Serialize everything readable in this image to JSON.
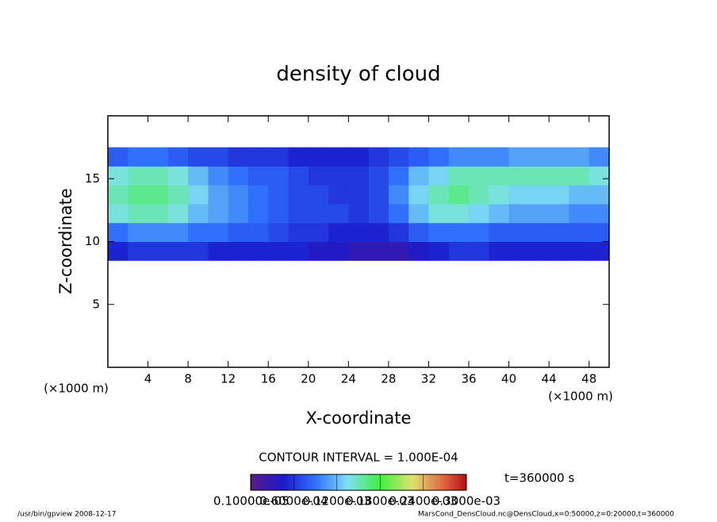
{
  "chart_data": {
    "type": "heatmap",
    "title": "density of cloud",
    "x_label": "X-coordinate",
    "y_label": "Z-coordinate",
    "x_unit": "(×1000 m)",
    "y_unit": "(×1000 m)",
    "xlim": [
      0,
      50
    ],
    "ylim": [
      0,
      20
    ],
    "xticks": [
      4,
      8,
      12,
      16,
      20,
      24,
      28,
      32,
      36,
      40,
      44,
      48
    ],
    "yticks": [
      5,
      10,
      15
    ],
    "x": [
      1,
      3,
      5,
      7,
      9,
      11,
      13,
      15,
      17,
      19,
      21,
      23,
      25,
      27,
      29,
      31,
      33,
      35,
      37,
      39,
      41,
      43,
      45,
      47,
      49
    ],
    "y": [
      9.25,
      10.75,
      12.25,
      13.75,
      15.25,
      16.75
    ],
    "cell_width": 2,
    "cell_height": 1.5,
    "values": [
      [
        5e-05,
        6e-05,
        6e-05,
        6e-05,
        6e-05,
        5e-05,
        5e-05,
        5e-05,
        5e-05,
        5e-05,
        4e-05,
        4e-05,
        3e-05,
        3e-05,
        3e-05,
        4e-05,
        5e-05,
        6e-05,
        6e-05,
        5e-05,
        5e-05,
        5e-05,
        5e-05,
        5e-05,
        5e-05
      ],
      [
        9e-05,
        0.0001,
        0.0001,
        0.0001,
        9e-05,
        9e-05,
        8e-05,
        8e-05,
        7e-05,
        6e-05,
        6e-05,
        5e-05,
        5e-05,
        5e-05,
        6e-05,
        8e-05,
        9e-05,
        9e-05,
        9e-05,
        8e-05,
        8e-05,
        8e-05,
        8e-05,
        8e-05,
        8e-05
      ],
      [
        0.00014,
        0.00015,
        0.00015,
        0.00014,
        0.00012,
        0.00011,
        0.0001,
        9e-05,
        8e-05,
        7e-05,
        7e-05,
        7e-05,
        6e-05,
        7e-05,
        9e-05,
        0.00012,
        0.00014,
        0.00014,
        0.00013,
        0.00012,
        0.00011,
        0.00011,
        0.00011,
        0.0001,
        0.0001
      ],
      [
        0.00015,
        0.00016,
        0.00016,
        0.00015,
        0.00013,
        0.00011,
        0.0001,
        9e-05,
        8e-05,
        7e-05,
        7e-05,
        6e-05,
        6e-05,
        7e-05,
        0.0001,
        0.00013,
        0.00015,
        0.00016,
        0.00015,
        0.00014,
        0.00013,
        0.00013,
        0.00013,
        0.00012,
        0.00012
      ],
      [
        0.00014,
        0.00015,
        0.00015,
        0.00014,
        0.00012,
        0.0001,
        9e-05,
        8e-05,
        8e-05,
        7e-05,
        6e-05,
        6e-05,
        6e-05,
        7e-05,
        9e-05,
        0.00012,
        0.00013,
        0.00015,
        0.00015,
        0.00015,
        0.00015,
        0.00015,
        0.00015,
        0.00015,
        0.00014
      ],
      [
        8e-05,
        9e-05,
        9e-05,
        8e-05,
        7e-05,
        7e-05,
        6e-05,
        6e-05,
        6e-05,
        5e-05,
        5e-05,
        5e-05,
        5e-05,
        6e-05,
        7e-05,
        8e-05,
        9e-05,
        0.0001,
        0.0001,
        0.0001,
        0.00011,
        0.00011,
        0.00011,
        0.00011,
        0.0001
      ]
    ],
    "colorbar_lim": [
      0,
      0.0003
    ],
    "colorbar_ticks": [
      {
        "value": 1e-06,
        "label": "0.10000e-05"
      },
      {
        "value": 6e-05,
        "label": "0.6000e-04"
      },
      {
        "value": 0.00012,
        "label": "0.1200e-03"
      },
      {
        "value": 0.00018,
        "label": "0.1800e-03"
      },
      {
        "value": 0.00024,
        "label": "0.2400e-03"
      },
      {
        "value": 0.0003,
        "label": "0.3000e-03"
      }
    ],
    "contour_interval": "CONTOUR INTERVAL = 1.000E-04",
    "time_label": "t=360000 s",
    "footer_left": "/usr/bin/gpview  2008-12-17",
    "footer_right": "MarsCond_DensCloud.nc@DensCloud,x=0:50000,z=0:20000,t=360000"
  }
}
